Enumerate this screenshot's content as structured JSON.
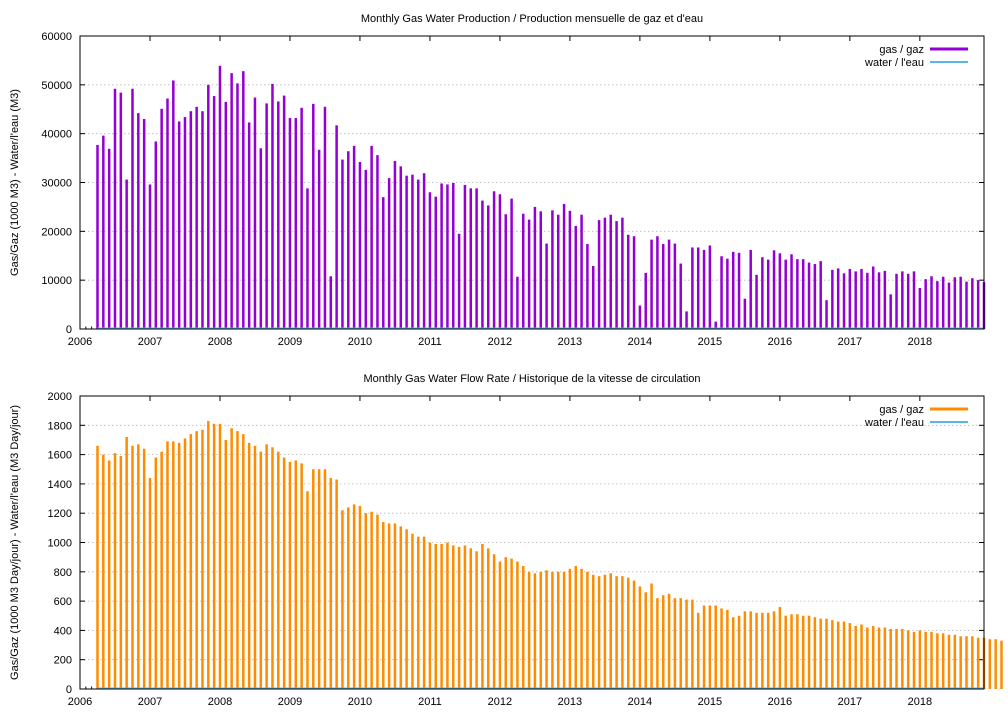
{
  "chart_data": [
    {
      "type": "bar",
      "title": "Monthly Gas  Water Production / Production mensuelle de gaz et d'eau",
      "xlabel": "",
      "ylabel": "Gas/Gaz (1000 M3) - Water/l'eau (M3)",
      "x_start": "2006-04",
      "xlim": [
        "2006-01",
        "2018-12"
      ],
      "ylim": [
        0,
        60000
      ],
      "y_ticks": [
        "0",
        "10000",
        "20000",
        "30000",
        "40000",
        "50000",
        "60000"
      ],
      "x_ticks": [
        "2006",
        "2007",
        "2008",
        "2009",
        "2010",
        "2011",
        "2012",
        "2013",
        "2014",
        "2015",
        "2016",
        "2017",
        "2018"
      ],
      "grid": "y",
      "legend": "top-right",
      "series": [
        {
          "name": "gas / gaz",
          "color": "#9400d3",
          "style": "bars",
          "values": [
            37700,
            39600,
            36900,
            49200,
            48400,
            30600,
            49200,
            44200,
            43000,
            29600,
            38400,
            45100,
            47200,
            50900,
            42500,
            43400,
            44600,
            45500,
            44600,
            50000,
            47700,
            53900,
            46500,
            52400,
            50300,
            52800,
            42300,
            47400,
            37000,
            46200,
            50200,
            46600,
            47800,
            43200,
            43200,
            45300,
            28800,
            46100,
            36700,
            45500,
            10800,
            41700,
            34700,
            36400,
            37500,
            34200,
            32600,
            37500,
            35600,
            27000,
            30900,
            34400,
            33300,
            31400,
            31600,
            30600,
            31900,
            28000,
            27100,
            29800,
            29600,
            29900,
            19500,
            29500,
            28800,
            28800,
            26300,
            25300,
            28200,
            27600,
            23500,
            26700,
            10700,
            23600,
            22400,
            25000,
            24100,
            17500,
            24300,
            23400,
            25600,
            24200,
            21100,
            23400,
            17400,
            12900,
            22300,
            22800,
            23400,
            22100,
            22800,
            19300,
            19000,
            4800,
            11500,
            18300,
            19000,
            17400,
            18300,
            17500,
            13400,
            3600,
            16700,
            16700,
            16200,
            17100,
            1500,
            14900,
            14400,
            15800,
            15600,
            6200,
            16200,
            11100,
            14700,
            14200,
            16100,
            15500,
            14200,
            15300,
            14300,
            14300,
            13600,
            13300,
            13900,
            5900,
            12100,
            12400,
            11400,
            12300,
            11800,
            12300,
            11500,
            12800,
            11600,
            11900,
            7100,
            11300,
            11800,
            11300,
            11800,
            8400,
            10200,
            10800,
            9800,
            10700,
            9500,
            10600,
            10700,
            9700,
            10400,
            10000,
            9600
          ]
        },
        {
          "name": "water / l'eau",
          "color": "#5ab4e5",
          "style": "line",
          "values_constant": 0
        }
      ]
    },
    {
      "type": "bar",
      "title": "Monthly Gas  Water Flow Rate / Historique de la vitesse de circulation",
      "xlabel": "",
      "ylabel": "Gas/Gaz (1000 M3 Day/jour) - Water/l'eau (M3 Day/jour)",
      "x_start": "2006-04",
      "xlim": [
        "2006-01",
        "2018-12"
      ],
      "ylim": [
        0,
        2000
      ],
      "y_ticks": [
        "0",
        "200",
        "400",
        "600",
        "800",
        "1000",
        "1200",
        "1400",
        "1600",
        "1800",
        "2000"
      ],
      "x_ticks": [
        "2006",
        "2007",
        "2008",
        "2009",
        "2010",
        "2011",
        "2012",
        "2013",
        "2014",
        "2015",
        "2016",
        "2017",
        "2018"
      ],
      "grid": "y",
      "legend": "top-right",
      "series": [
        {
          "name": "gas / gaz",
          "color": "#ff8c00",
          "style": "bars",
          "values": [
            1660,
            1600,
            1560,
            1610,
            1590,
            1720,
            1660,
            1670,
            1640,
            1440,
            1580,
            1620,
            1690,
            1690,
            1680,
            1710,
            1740,
            1760,
            1770,
            1830,
            1810,
            1810,
            1700,
            1780,
            1760,
            1740,
            1680,
            1660,
            1620,
            1670,
            1650,
            1620,
            1580,
            1550,
            1560,
            1540,
            1350,
            1500,
            1500,
            1500,
            1440,
            1430,
            1220,
            1240,
            1260,
            1250,
            1200,
            1210,
            1190,
            1140,
            1130,
            1130,
            1110,
            1090,
            1060,
            1040,
            1040,
            1000,
            990,
            990,
            1000,
            980,
            970,
            980,
            960,
            940,
            990,
            960,
            920,
            870,
            900,
            890,
            870,
            840,
            800,
            790,
            800,
            810,
            800,
            800,
            800,
            820,
            840,
            820,
            800,
            780,
            770,
            780,
            790,
            770,
            770,
            760,
            740,
            700,
            660,
            720,
            620,
            640,
            650,
            620,
            620,
            610,
            610,
            520,
            570,
            570,
            570,
            550,
            540,
            490,
            500,
            530,
            530,
            520,
            520,
            520,
            530,
            560,
            500,
            510,
            510,
            500,
            500,
            490,
            480,
            480,
            470,
            460,
            460,
            450,
            430,
            440,
            420,
            430,
            420,
            420,
            410,
            410,
            410,
            400,
            390,
            400,
            390,
            390,
            380,
            380,
            370,
            370,
            360,
            360,
            360,
            350,
            350,
            340,
            340,
            330
          ]
        },
        {
          "name": "water / l'eau",
          "color": "#5ab4e5",
          "style": "line",
          "values_constant": 0
        }
      ]
    }
  ]
}
